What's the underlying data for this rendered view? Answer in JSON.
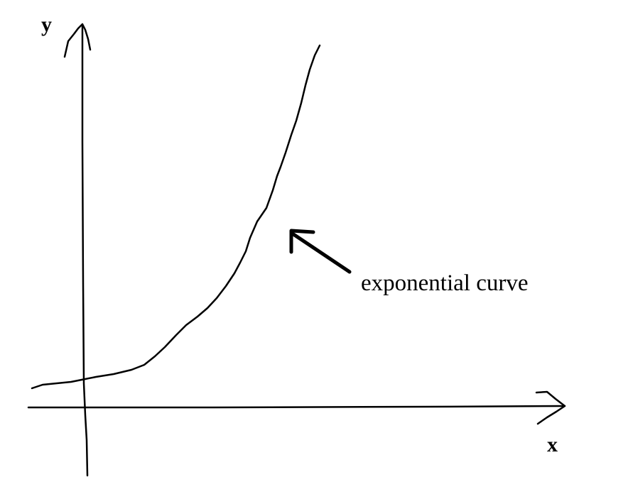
{
  "axes": {
    "y_label": "y",
    "x_label": "x"
  },
  "annotation": {
    "text": "exponential curve"
  }
}
